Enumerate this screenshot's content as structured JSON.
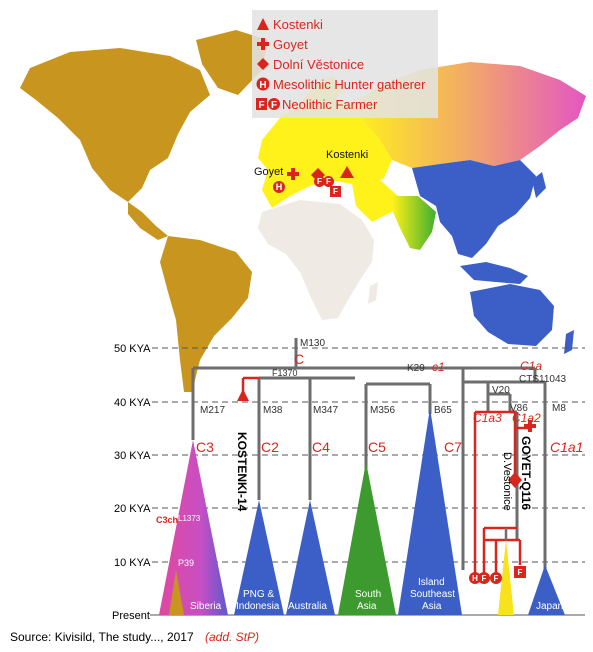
{
  "legend": {
    "kostenki": "Kostenki",
    "goyet": "Goyet",
    "dolni": "Dolní Věstonice",
    "mesolithic": "Mesolithic Hunter gatherer",
    "neolithic": "Neolithic Farmer"
  },
  "map_labels": {
    "goyet": "Goyet",
    "kostenki": "Kostenki"
  },
  "map_markers": {
    "mesolithic": "H",
    "neolithic": "F"
  },
  "axis": {
    "ticks": [
      "50 KYA",
      "40 KYA",
      "30 KYA",
      "20 KYA",
      "10 KYA",
      "Present"
    ]
  },
  "tree": {
    "root_marker": "M130",
    "root_clade": "C",
    "f1370": "F1370",
    "k29": "K29",
    "c1": "c1",
    "c1a": "C1a",
    "cts11043": "CTS11043",
    "v20": "V20",
    "v86": "V86",
    "m8": "M8",
    "c1a3": "C1a3",
    "c1a2": "C1a2",
    "c1a1": "C1a1",
    "m217": "M217",
    "m38": "M38",
    "m347": "M347",
    "m356": "M356",
    "b65": "B65",
    "c3": "C3",
    "c2": "C2",
    "c4": "C4",
    "c5": "C5",
    "c7": "C7",
    "kostenki14": "KOSTENKI-14",
    "goyetq116": "GOYET-Q116",
    "dvestonice": "D.Vestonice",
    "c3ch": "C3ch",
    "l1373": "L1373",
    "p39": "P39",
    "siberia": "Siberia",
    "png": "PNG &",
    "indonesia": "Indonesia",
    "australia": "Australia",
    "south": "South",
    "asia": "Asia",
    "island": "Island",
    "southeast": "Southeast",
    "asia2": "Asia",
    "japan": "Japan",
    "h_label": "H",
    "f_label": "F"
  },
  "footer": {
    "source": "Source: Kivisild, The study..., 2017",
    "add": "(add. StP)"
  },
  "colors": {
    "americas": "#c8961e",
    "africa": "#efeae4",
    "europe": "#fff21a",
    "south_asia_green": "#62b42a",
    "east_asia_blue": "#3c5fc7",
    "north_asia_pink": "#e45cbe",
    "marker_red": "#d9261c",
    "tree_gray": "#6d6d6d"
  }
}
